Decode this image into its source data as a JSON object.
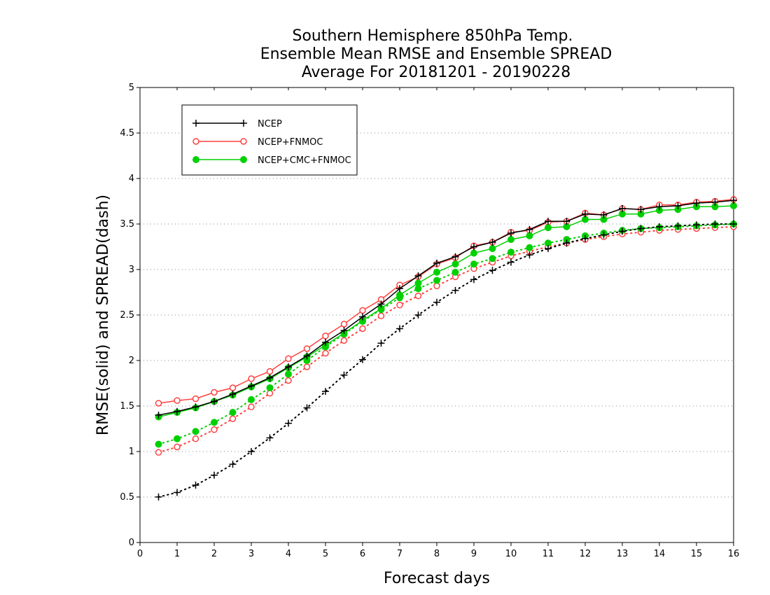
{
  "chart_data": {
    "type": "line",
    "title_lines": [
      "Southern Hemisphere 850hPa Temp.",
      "Ensemble Mean RMSE and Ensemble SPREAD",
      "Average For 20181201 - 20190228"
    ],
    "xlabel": "Forecast days",
    "ylabel": "RMSE(solid) and SPREAD(dash)",
    "xlim": [
      0,
      16
    ],
    "ylim": [
      0,
      5
    ],
    "xticks": [
      "0",
      "1",
      "2",
      "3",
      "4",
      "5",
      "6",
      "7",
      "8",
      "9",
      "10",
      "11",
      "12",
      "13",
      "14",
      "15",
      "16"
    ],
    "yticks": [
      "0",
      "0.5",
      "1",
      "1.5",
      "2",
      "2.5",
      "3",
      "3.5",
      "4",
      "4.5",
      "5"
    ],
    "grid": "horizontal dotted",
    "legend_position": "top-left",
    "x": [
      0.5,
      1,
      1.5,
      2,
      2.5,
      3,
      3.5,
      4,
      4.5,
      5,
      5.5,
      6,
      6.5,
      7,
      7.5,
      8,
      8.5,
      9,
      9.5,
      10,
      10.5,
      11,
      11.5,
      12,
      12.5,
      13,
      13.5,
      14,
      14.5,
      15,
      15.5,
      16
    ],
    "series": [
      {
        "name": "NCEP",
        "color": "#000000",
        "marker": "plus",
        "rmse": [
          1.4,
          1.44,
          1.49,
          1.55,
          1.63,
          1.72,
          1.81,
          1.93,
          2.05,
          2.2,
          2.33,
          2.48,
          2.62,
          2.79,
          2.93,
          3.07,
          3.14,
          3.25,
          3.3,
          3.4,
          3.44,
          3.53,
          3.53,
          3.61,
          3.6,
          3.67,
          3.66,
          3.69,
          3.7,
          3.73,
          3.74,
          3.76
        ],
        "spread": [
          0.5,
          0.55,
          0.63,
          0.74,
          0.86,
          1.0,
          1.15,
          1.31,
          1.48,
          1.66,
          1.84,
          2.01,
          2.19,
          2.35,
          2.5,
          2.64,
          2.77,
          2.89,
          2.99,
          3.08,
          3.16,
          3.23,
          3.29,
          3.34,
          3.38,
          3.42,
          3.45,
          3.47,
          3.48,
          3.49,
          3.5,
          3.5
        ]
      },
      {
        "name": "NCEP+FNMOC",
        "color": "#ff4040",
        "marker": "open-circle",
        "rmse": [
          1.53,
          1.56,
          1.58,
          1.65,
          1.7,
          1.8,
          1.88,
          2.02,
          2.13,
          2.27,
          2.4,
          2.55,
          2.67,
          2.83,
          2.92,
          3.06,
          3.13,
          3.26,
          3.3,
          3.41,
          3.43,
          3.52,
          3.53,
          3.62,
          3.6,
          3.67,
          3.66,
          3.71,
          3.71,
          3.74,
          3.75,
          3.77
        ],
        "spread": [
          0.99,
          1.05,
          1.14,
          1.24,
          1.36,
          1.49,
          1.64,
          1.78,
          1.93,
          2.08,
          2.22,
          2.35,
          2.49,
          2.61,
          2.71,
          2.82,
          2.92,
          3.01,
          3.08,
          3.15,
          3.2,
          3.25,
          3.29,
          3.33,
          3.36,
          3.39,
          3.41,
          3.43,
          3.44,
          3.45,
          3.46,
          3.47
        ]
      },
      {
        "name": "NCEP+CMC+FNMOC",
        "color": "#00d000",
        "marker": "filled-circle",
        "rmse": [
          1.38,
          1.43,
          1.48,
          1.55,
          1.62,
          1.71,
          1.8,
          1.92,
          2.04,
          2.17,
          2.3,
          2.44,
          2.57,
          2.72,
          2.85,
          2.97,
          3.06,
          3.18,
          3.23,
          3.33,
          3.37,
          3.46,
          3.47,
          3.55,
          3.55,
          3.61,
          3.61,
          3.65,
          3.66,
          3.69,
          3.69,
          3.7
        ],
        "spread": [
          1.08,
          1.14,
          1.22,
          1.32,
          1.43,
          1.57,
          1.7,
          1.85,
          2.0,
          2.15,
          2.29,
          2.43,
          2.56,
          2.69,
          2.79,
          2.88,
          2.97,
          3.06,
          3.12,
          3.19,
          3.24,
          3.29,
          3.33,
          3.37,
          3.4,
          3.43,
          3.45,
          3.46,
          3.47,
          3.48,
          3.49,
          3.5
        ]
      }
    ]
  }
}
